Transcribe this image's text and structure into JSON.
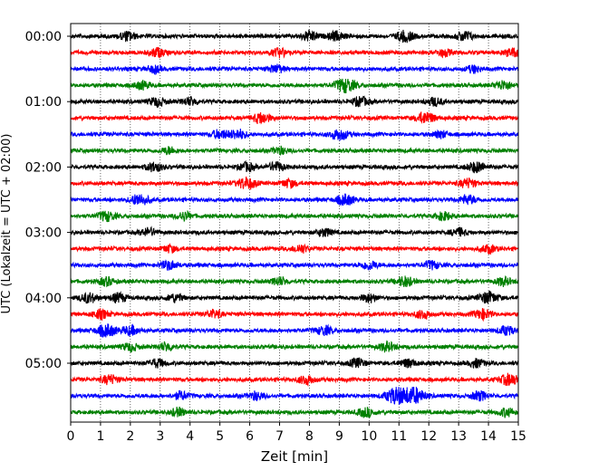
{
  "chart_data": {
    "type": "line",
    "title": "",
    "xlabel": "Zeit  [min]",
    "ylabel": "UTC (Lokalzeit = UTC + 02:00)",
    "xlim": [
      0,
      15
    ],
    "x_ticks": [
      "0",
      "1",
      "2",
      "3",
      "4",
      "5",
      "6",
      "7",
      "8",
      "9",
      "10",
      "11",
      "12",
      "13",
      "14",
      "15"
    ],
    "y_tick_labels": [
      {
        "row": 0,
        "label": "00:00"
      },
      {
        "row": 4,
        "label": "01:00"
      },
      {
        "row": 8,
        "label": "02:00"
      },
      {
        "row": 12,
        "label": "03:00"
      },
      {
        "row": 16,
        "label": "04:00"
      },
      {
        "row": 20,
        "label": "05:00"
      }
    ],
    "grid": "vertical dotted",
    "trace_interval_minutes": 15,
    "trace_colors": [
      "#000000",
      "#ff0000",
      "#0000ff",
      "#008000"
    ],
    "traces": [
      {
        "start": "00:00",
        "color": "#000000",
        "bursts": [
          [
            1.9,
            1.0
          ],
          [
            8.0,
            1.1
          ],
          [
            8.9,
            1.0
          ],
          [
            11.2,
            1.2
          ],
          [
            13.2,
            1.1
          ]
        ]
      },
      {
        "start": "00:15",
        "color": "#ff0000",
        "bursts": [
          [
            2.9,
            1.0
          ],
          [
            7.0,
            0.9
          ],
          [
            12.5,
            0.8
          ],
          [
            14.8,
            0.9
          ]
        ]
      },
      {
        "start": "00:30",
        "color": "#0000ff",
        "bursts": [
          [
            2.8,
            0.8
          ],
          [
            6.9,
            0.9
          ],
          [
            13.5,
            0.8
          ]
        ]
      },
      {
        "start": "00:45",
        "color": "#008000",
        "bursts": [
          [
            2.4,
            0.9
          ],
          [
            9.2,
            1.6
          ],
          [
            14.5,
            1.0
          ]
        ]
      },
      {
        "start": "01:00",
        "color": "#000000",
        "bursts": [
          [
            2.9,
            1.0
          ],
          [
            4.0,
            0.9
          ],
          [
            9.7,
            1.0
          ],
          [
            12.2,
            0.9
          ]
        ]
      },
      {
        "start": "01:15",
        "color": "#ff0000",
        "bursts": [
          [
            6.4,
            1.2
          ],
          [
            11.9,
            1.3
          ]
        ]
      },
      {
        "start": "01:30",
        "color": "#0000ff",
        "bursts": [
          [
            5.0,
            1.0
          ],
          [
            5.6,
            1.1
          ],
          [
            9.0,
            1.2
          ],
          [
            12.4,
            0.8
          ]
        ]
      },
      {
        "start": "01:45",
        "color": "#008000",
        "bursts": [
          [
            3.3,
            0.8
          ],
          [
            7.0,
            0.8
          ]
        ]
      },
      {
        "start": "02:00",
        "color": "#000000",
        "bursts": [
          [
            2.8,
            1.0
          ],
          [
            5.9,
            0.9
          ],
          [
            6.9,
            1.0
          ],
          [
            13.6,
            1.2
          ]
        ]
      },
      {
        "start": "02:15",
        "color": "#ff0000",
        "bursts": [
          [
            5.9,
            1.3
          ],
          [
            7.3,
            0.9
          ],
          [
            13.3,
            1.0
          ]
        ]
      },
      {
        "start": "02:30",
        "color": "#0000ff",
        "bursts": [
          [
            2.3,
            1.3
          ],
          [
            9.2,
            1.2
          ],
          [
            13.3,
            1.0
          ]
        ]
      },
      {
        "start": "02:45",
        "color": "#008000",
        "bursts": [
          [
            1.2,
            1.1
          ],
          [
            3.8,
            0.9
          ],
          [
            12.5,
            0.9
          ]
        ]
      },
      {
        "start": "03:00",
        "color": "#000000",
        "bursts": [
          [
            2.6,
            0.9
          ],
          [
            8.5,
            0.9
          ],
          [
            13.0,
            0.9
          ]
        ]
      },
      {
        "start": "03:15",
        "color": "#ff0000",
        "bursts": [
          [
            3.3,
            0.8
          ],
          [
            7.7,
            0.9
          ],
          [
            14.0,
            0.9
          ]
        ]
      },
      {
        "start": "03:30",
        "color": "#0000ff",
        "bursts": [
          [
            3.3,
            1.0
          ],
          [
            10.0,
            1.0
          ],
          [
            12.1,
            0.9
          ]
        ]
      },
      {
        "start": "03:45",
        "color": "#008000",
        "bursts": [
          [
            1.2,
            0.9
          ],
          [
            7.0,
            0.9
          ],
          [
            11.2,
            1.1
          ],
          [
            14.5,
            0.9
          ]
        ]
      },
      {
        "start": "04:00",
        "color": "#000000",
        "bursts": [
          [
            0.6,
            1.1
          ],
          [
            1.6,
            1.0
          ],
          [
            3.5,
            0.9
          ],
          [
            10.0,
            0.9
          ],
          [
            14.0,
            1.3
          ]
        ]
      },
      {
        "start": "04:15",
        "color": "#ff0000",
        "bursts": [
          [
            1.0,
            1.0
          ],
          [
            4.8,
            0.9
          ],
          [
            11.8,
            0.9
          ],
          [
            13.8,
            1.1
          ]
        ]
      },
      {
        "start": "04:30",
        "color": "#0000ff",
        "bursts": [
          [
            1.2,
            1.4
          ],
          [
            2.0,
            1.0
          ],
          [
            8.5,
            1.0
          ],
          [
            14.6,
            1.0
          ]
        ]
      },
      {
        "start": "04:45",
        "color": "#008000",
        "bursts": [
          [
            2.0,
            0.9
          ],
          [
            3.2,
            0.9
          ],
          [
            10.6,
            1.0
          ]
        ]
      },
      {
        "start": "05:00",
        "color": "#000000",
        "bursts": [
          [
            2.9,
            0.9
          ],
          [
            9.6,
            1.0
          ],
          [
            11.3,
            0.9
          ],
          [
            13.6,
            0.9
          ]
        ]
      },
      {
        "start": "05:15",
        "color": "#ff0000",
        "bursts": [
          [
            1.3,
            1.0
          ],
          [
            7.9,
            1.0
          ],
          [
            14.7,
            1.3
          ]
        ]
      },
      {
        "start": "05:30",
        "color": "#0000ff",
        "bursts": [
          [
            3.7,
            0.9
          ],
          [
            6.2,
            0.9
          ],
          [
            10.9,
            1.8
          ],
          [
            11.5,
            1.8
          ],
          [
            13.7,
            1.0
          ]
        ]
      },
      {
        "start": "05:45",
        "color": "#008000",
        "bursts": [
          [
            3.6,
            0.9
          ],
          [
            9.9,
            1.0
          ],
          [
            14.6,
            0.9
          ]
        ]
      }
    ]
  }
}
